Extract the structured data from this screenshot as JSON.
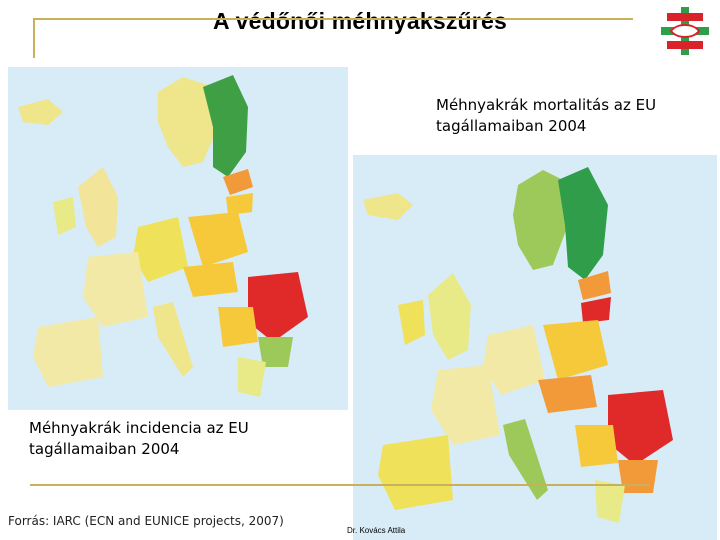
{
  "slide": {
    "title": "A védőnői méhnyakszűrés",
    "mortality_caption_line1": "Méhnyakrák mortalitás az EU",
    "mortality_caption_line2": "tagállamaiban 2004",
    "incidence_caption_line1": "Méhnyakrák incidencia az EU",
    "incidence_caption_line2": "tagállamaiban 2004",
    "source": "Forrás: IARC (ECN and EUNICE projects, 2007)",
    "author": "Dr. Kovács Attila"
  },
  "colors": {
    "accent_line": "#c9b05a",
    "sea": "#d7ecf6",
    "low": "#f3e9a7",
    "mid_low": "#efe15a",
    "mid": "#f6c93b",
    "mid_high": "#f29a3a",
    "high": "#e02a2a",
    "green": "#3ea34a",
    "light_green": "#9dc95a"
  }
}
